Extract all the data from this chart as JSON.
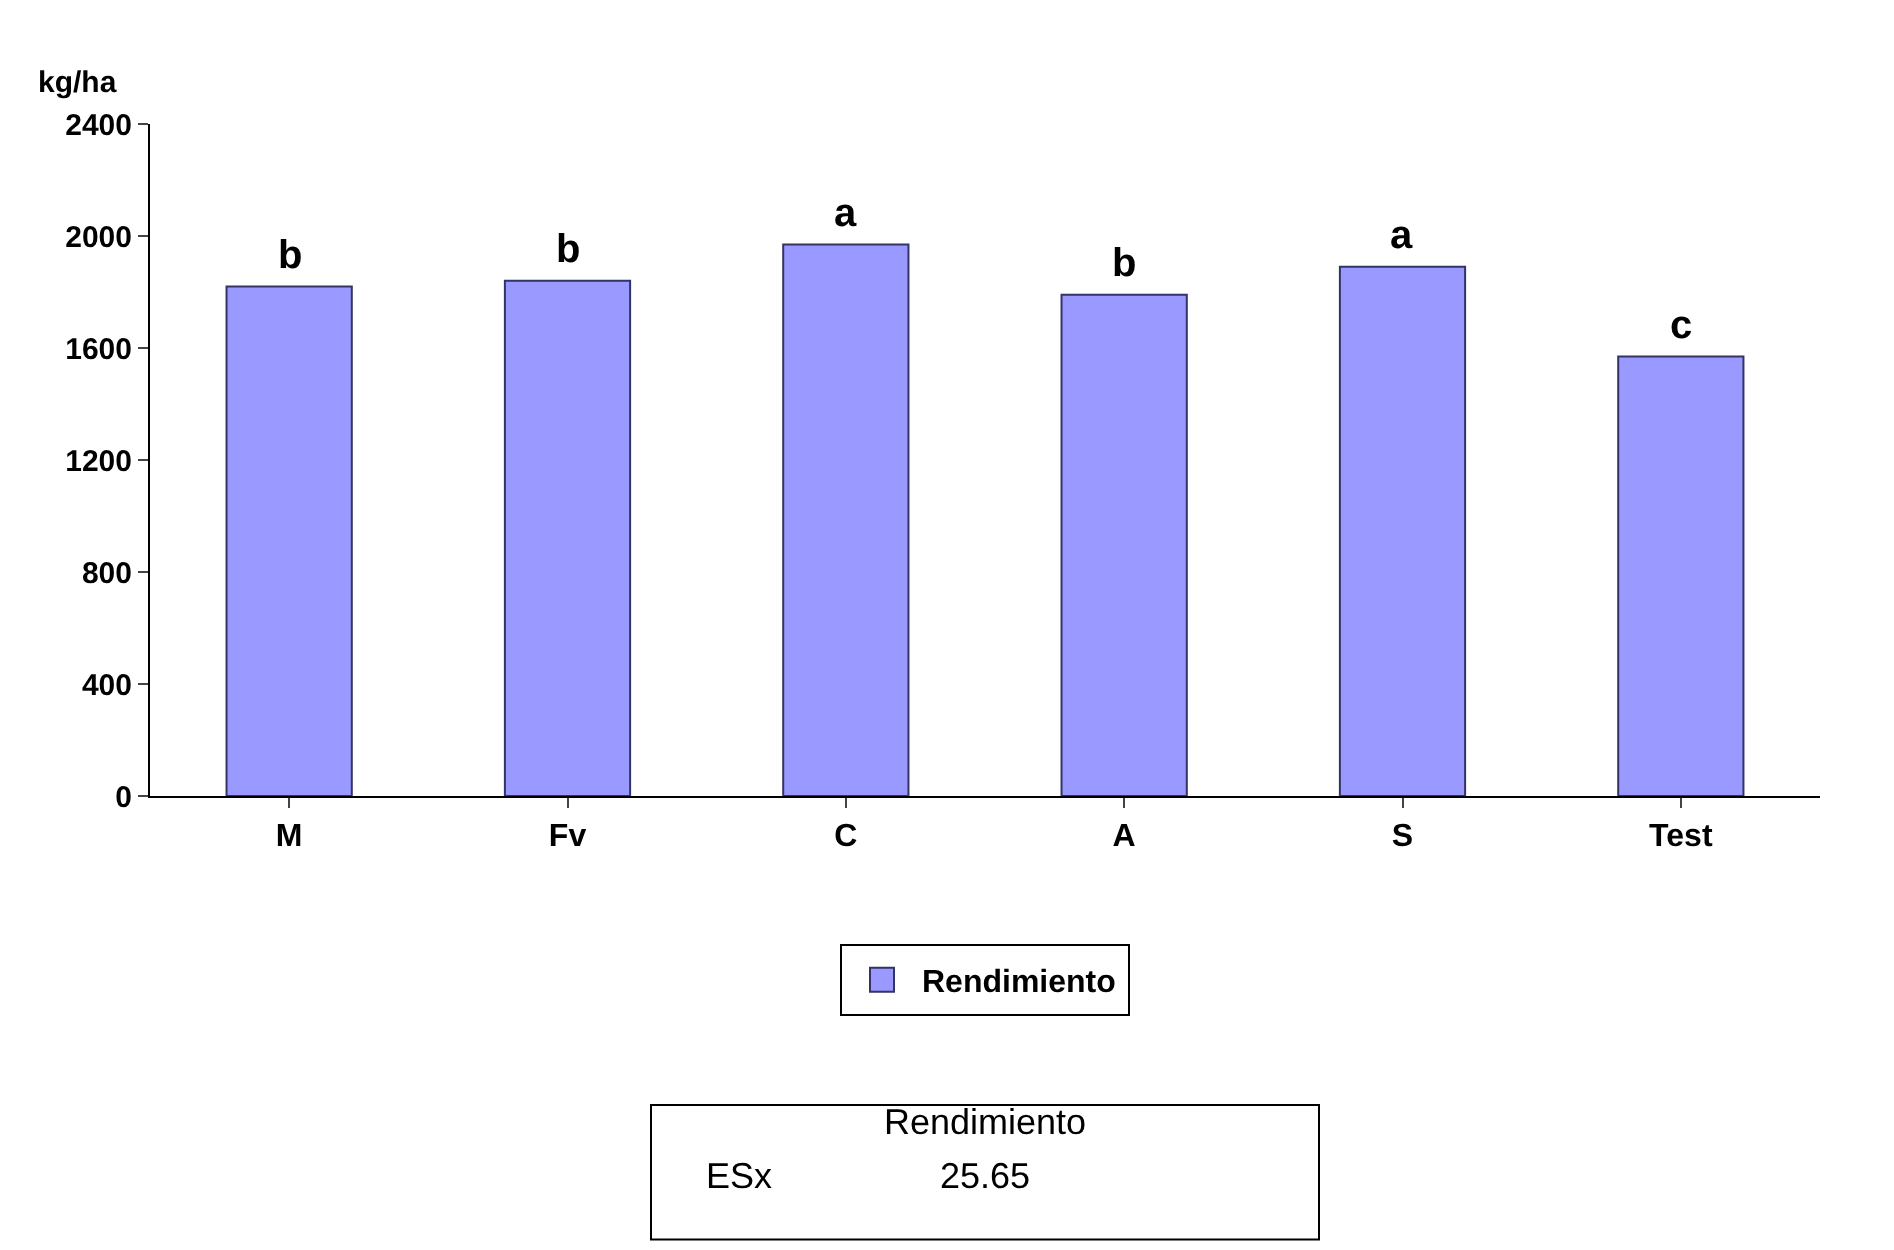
{
  "chart_data": {
    "type": "bar",
    "ylabel": "kg/ha",
    "categories": [
      "M",
      "Fv",
      "C",
      "A",
      "S",
      "Test"
    ],
    "series": [
      {
        "name": "Rendimiento",
        "color": "#9999ff",
        "values": [
          1820,
          1840,
          1970,
          1790,
          1890,
          1570
        ]
      }
    ],
    "ylim": [
      0,
      2400
    ],
    "yticks": [
      0,
      400,
      800,
      1200,
      1600,
      2000,
      2400
    ],
    "legend": "bottom",
    "annotations": [
      {
        "text": "b",
        "x": "M",
        "y": 1820
      },
      {
        "text": "b",
        "x": "Fv",
        "y": 1840
      },
      {
        "text": "a",
        "x": "C",
        "y": 1970
      },
      {
        "text": "b",
        "x": "A",
        "y": 1790
      },
      {
        "text": "a",
        "x": "S",
        "y": 1890
      },
      {
        "text": "c",
        "x": "Test",
        "y": 1570
      },
      "Rendimiento",
      "ESx",
      "25.65"
    ]
  }
}
